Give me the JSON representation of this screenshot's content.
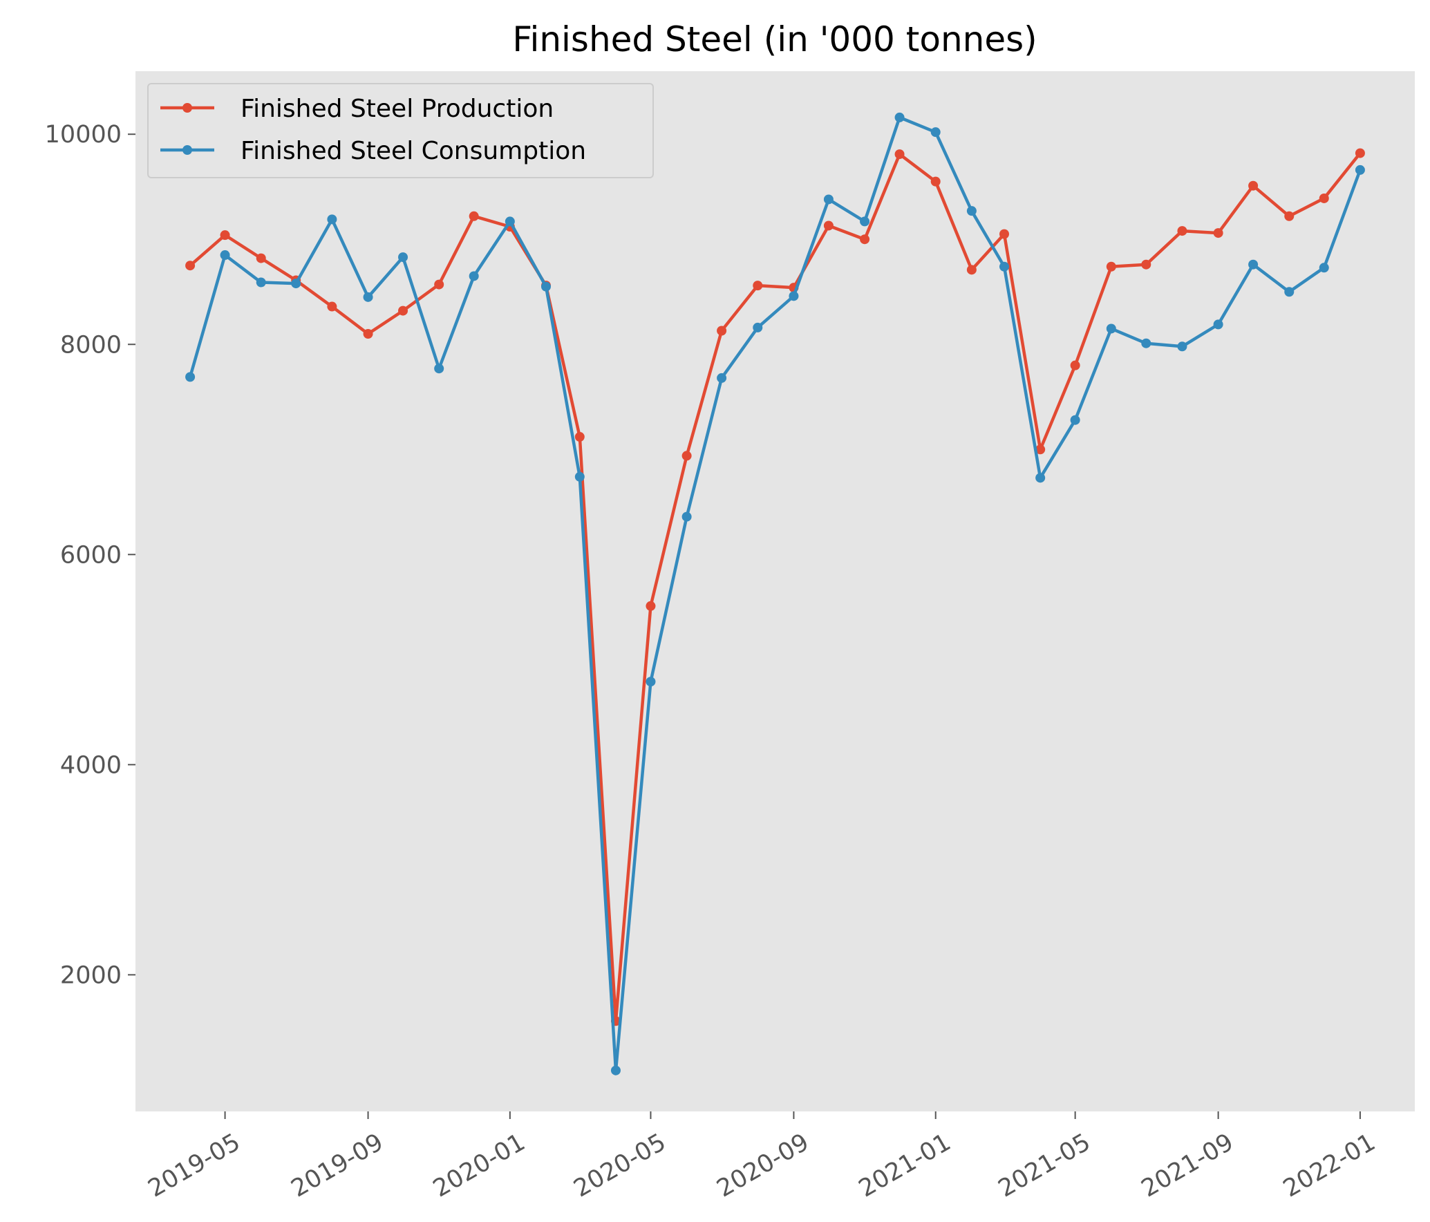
{
  "chart_data": {
    "type": "line",
    "title": "Finished Steel (in '000 tonnes)",
    "xlabel": "",
    "ylabel": "",
    "x": [
      "2019-04-01",
      "2019-05-01",
      "2019-06-01",
      "2019-07-01",
      "2019-08-01",
      "2019-09-01",
      "2019-10-01",
      "2019-11-01",
      "2019-12-01",
      "2020-01-01",
      "2020-02-01",
      "2020-03-01",
      "2020-04-01",
      "2020-05-01",
      "2020-06-01",
      "2020-07-01",
      "2020-08-01",
      "2020-09-01",
      "2020-10-01",
      "2020-11-01",
      "2020-12-01",
      "2021-01-01",
      "2021-02-01",
      "2021-03-01",
      "2021-04-01",
      "2021-05-01",
      "2021-06-01",
      "2021-07-01",
      "2021-08-01",
      "2021-09-01",
      "2021-10-01",
      "2021-11-01",
      "2021-12-01",
      "2022-01-01"
    ],
    "series": [
      {
        "name": "Finished Steel Production",
        "color": "#E24A33",
        "values": [
          8750,
          9040,
          8820,
          8610,
          8360,
          8100,
          8320,
          8570,
          9220,
          9120,
          8560,
          7120,
          1560,
          5510,
          6940,
          8130,
          8560,
          8540,
          9130,
          9000,
          9810,
          9550,
          8710,
          9050,
          7000,
          7800,
          8740,
          8760,
          9080,
          9060,
          9510,
          9220,
          9390,
          9820
        ]
      },
      {
        "name": "Finished Steel Consumption",
        "color": "#348ABD",
        "values": [
          7690,
          8850,
          8590,
          8580,
          9190,
          8450,
          8830,
          7770,
          8650,
          9170,
          8550,
          6740,
          1090,
          4790,
          6360,
          7680,
          8160,
          8460,
          9380,
          9170,
          10160,
          10020,
          9270,
          8740,
          6730,
          7280,
          8150,
          8010,
          7980,
          8190,
          8760,
          8500,
          8730,
          9660
        ]
      }
    ],
    "x_ticks": [
      "2019-05",
      "2019-09",
      "2020-01",
      "2020-05",
      "2020-09",
      "2021-01",
      "2021-05",
      "2021-09",
      "2022-01"
    ],
    "y_ticks": [
      2000,
      4000,
      6000,
      8000,
      10000
    ],
    "ylim": [
      700,
      10600
    ],
    "xlim": [
      "2019-02-13",
      "2022-02-17"
    ],
    "grid": false,
    "legend_position": "upper-left",
    "background_color": "#E5E5E5"
  }
}
